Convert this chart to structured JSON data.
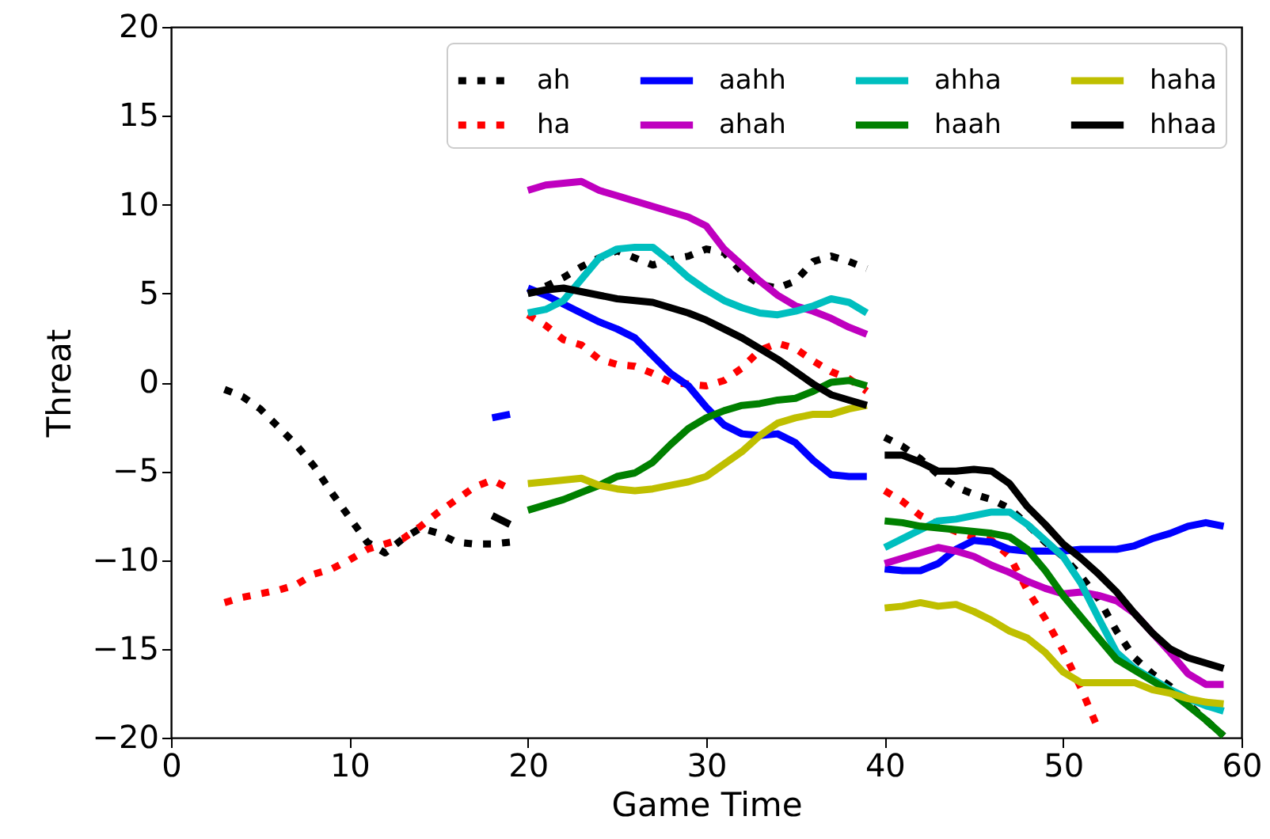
{
  "chart_data": {
    "type": "line",
    "xlabel": "Game Time",
    "ylabel": "Threat",
    "x": [
      3,
      4,
      5,
      6,
      7,
      8,
      9,
      10,
      11,
      12,
      13,
      14,
      15,
      16,
      17,
      18,
      19,
      19.5,
      20,
      21,
      22,
      23,
      24,
      25,
      26,
      27,
      28,
      29,
      30,
      31,
      32,
      33,
      34,
      35,
      36,
      37,
      38,
      39,
      39.5,
      40,
      41,
      42,
      43,
      44,
      45,
      46,
      47,
      48,
      49,
      50,
      51,
      52,
      53,
      54,
      55,
      56,
      57,
      58,
      59
    ],
    "xlim": [
      0,
      60
    ],
    "xticks": [
      0,
      10,
      20,
      30,
      40,
      50,
      60
    ],
    "ylim": [
      -20,
      20
    ],
    "yticks": [
      -20,
      -15,
      -10,
      -5,
      0,
      5,
      10,
      15,
      20
    ],
    "legend": "top right",
    "marker": "none",
    "grid": false,
    "series": [
      {
        "name": "ah",
        "color": "#000000",
        "line_style": "dotted",
        "values": [
          -0.4,
          -0.8,
          -1.5,
          -2.5,
          -3.5,
          -4.7,
          -6.2,
          -7.6,
          -9.0,
          -9.6,
          -8.8,
          -8.2,
          -8.5,
          -9.0,
          -9.1,
          -9.1,
          -9.0,
          null,
          5.0,
          5.4,
          5.9,
          6.5,
          7.0,
          7.4,
          7.0,
          6.6,
          6.9,
          7.1,
          7.5,
          7.3,
          6.2,
          5.5,
          5.3,
          5.7,
          6.8,
          7.1,
          6.8,
          6.4,
          null,
          -3.1,
          -3.6,
          -4.3,
          -5.2,
          -5.9,
          -6.3,
          -6.6,
          -7.1,
          -8.0,
          -9.0,
          -9.8,
          -10.9,
          -12.2,
          -14.0,
          -15.5,
          -16.4,
          -17.1,
          -18.1,
          -19.0,
          -19.9
        ]
      },
      {
        "name": "ha",
        "color": "#ff0000",
        "line_style": "dotted",
        "values": [
          -12.4,
          -12.1,
          -11.9,
          -11.7,
          -11.4,
          -10.8,
          -10.5,
          -10.0,
          -9.4,
          -9.1,
          -8.8,
          -8.1,
          -7.3,
          -6.6,
          -5.9,
          -5.5,
          -6.0,
          null,
          3.8,
          3.2,
          2.4,
          2.1,
          1.3,
          1.0,
          0.9,
          0.5,
          0.0,
          -0.1,
          -0.2,
          0.1,
          0.8,
          1.8,
          2.2,
          1.9,
          1.2,
          0.6,
          0.2,
          -0.5,
          null,
          -6.1,
          -6.7,
          -7.5,
          -8.0,
          -8.4,
          -8.7,
          -8.9,
          -9.8,
          -11.7,
          -13.3,
          -15.1,
          -17.2,
          -19.6,
          null,
          null,
          null,
          null,
          null,
          null,
          null
        ]
      },
      {
        "name": "aahh",
        "color": "#0000ff",
        "line_style": "solid",
        "values": [
          null,
          null,
          null,
          null,
          null,
          null,
          null,
          null,
          null,
          null,
          null,
          null,
          null,
          null,
          null,
          -2.0,
          -1.8,
          null,
          5.3,
          4.9,
          4.4,
          3.9,
          3.4,
          3.0,
          2.5,
          1.5,
          0.5,
          -0.2,
          -1.4,
          -2.4,
          -2.9,
          -3.0,
          -2.9,
          -3.4,
          -4.4,
          -5.2,
          -5.3,
          -5.3,
          null,
          -10.5,
          -10.6,
          -10.6,
          -10.2,
          -9.4,
          -8.9,
          -9.0,
          -9.4,
          -9.5,
          -9.5,
          -9.5,
          -9.4,
          -9.4,
          -9.4,
          -9.2,
          -8.8,
          -8.5,
          -8.1,
          -7.9,
          -8.1
        ]
      },
      {
        "name": "ahah",
        "color": "#bf00bf",
        "line_style": "solid",
        "values": [
          null,
          null,
          null,
          null,
          null,
          null,
          null,
          null,
          null,
          null,
          null,
          null,
          null,
          null,
          null,
          null,
          null,
          null,
          10.8,
          11.1,
          11.2,
          11.3,
          10.8,
          10.5,
          10.2,
          9.9,
          9.6,
          9.3,
          8.8,
          7.5,
          6.6,
          5.7,
          4.9,
          4.3,
          4.0,
          3.6,
          3.1,
          2.7,
          null,
          -10.2,
          -9.9,
          -9.6,
          -9.3,
          -9.5,
          -9.8,
          -10.3,
          -10.7,
          -11.2,
          -11.6,
          -11.9,
          -11.8,
          -12.0,
          -12.3,
          -13.0,
          -14.1,
          -15.2,
          -16.4,
          -17.0,
          -17.0
        ]
      },
      {
        "name": "ahha",
        "color": "#00bfbf",
        "line_style": "solid",
        "values": [
          null,
          null,
          null,
          null,
          null,
          null,
          null,
          null,
          null,
          null,
          null,
          null,
          null,
          null,
          null,
          null,
          null,
          null,
          3.9,
          4.1,
          4.6,
          5.8,
          7.0,
          7.5,
          7.6,
          7.6,
          6.8,
          5.9,
          5.2,
          4.6,
          4.2,
          3.9,
          3.8,
          4.0,
          4.3,
          4.7,
          4.5,
          3.9,
          null,
          -9.3,
          -8.8,
          -8.3,
          -7.8,
          -7.7,
          -7.5,
          -7.3,
          -7.3,
          -8.0,
          -8.9,
          -9.8,
          -11.3,
          -13.3,
          -15.2,
          -16.1,
          -16.7,
          -17.3,
          -17.8,
          -18.2,
          -18.5
        ]
      },
      {
        "name": "haah",
        "color": "#008000",
        "line_style": "solid",
        "values": [
          null,
          null,
          null,
          null,
          null,
          null,
          null,
          null,
          null,
          null,
          null,
          null,
          null,
          null,
          null,
          null,
          null,
          null,
          -7.2,
          -6.9,
          -6.6,
          -6.2,
          -5.8,
          -5.3,
          -5.1,
          -4.5,
          -3.5,
          -2.6,
          -2.0,
          -1.6,
          -1.3,
          -1.2,
          -1.0,
          -0.9,
          -0.5,
          0.0,
          0.1,
          -0.2,
          null,
          -7.8,
          -7.9,
          -8.1,
          -8.2,
          -8.3,
          -8.4,
          -8.5,
          -8.7,
          -9.4,
          -10.6,
          -12.0,
          -13.2,
          -14.4,
          -15.6,
          -16.2,
          -16.8,
          -17.4,
          -18.2,
          -19.0,
          -19.9
        ]
      },
      {
        "name": "haha",
        "color": "#bfbf00",
        "line_style": "solid",
        "values": [
          null,
          null,
          null,
          null,
          null,
          null,
          null,
          null,
          null,
          null,
          null,
          null,
          null,
          null,
          null,
          null,
          null,
          null,
          -5.7,
          -5.6,
          -5.5,
          -5.4,
          -5.8,
          -6.0,
          -6.1,
          -6.0,
          -5.8,
          -5.6,
          -5.3,
          -4.6,
          -3.9,
          -3.0,
          -2.3,
          -2.0,
          -1.8,
          -1.8,
          -1.5,
          -1.3,
          null,
          -12.7,
          -12.6,
          -12.4,
          -12.6,
          -12.5,
          -12.9,
          -13.4,
          -14.0,
          -14.4,
          -15.2,
          -16.3,
          -16.9,
          -16.9,
          -16.9,
          -16.9,
          -17.3,
          -17.5,
          -17.8,
          -18.0,
          -18.1
        ]
      },
      {
        "name": "hhaa",
        "color": "#000000",
        "line_style": "solid",
        "values": [
          null,
          null,
          null,
          null,
          null,
          null,
          null,
          null,
          null,
          null,
          null,
          null,
          null,
          null,
          null,
          -7.5,
          -8.0,
          null,
          5.0,
          5.2,
          5.3,
          5.1,
          4.9,
          4.7,
          4.6,
          4.5,
          4.2,
          3.9,
          3.5,
          3.0,
          2.5,
          1.9,
          1.3,
          0.6,
          -0.1,
          -0.7,
          -1.0,
          -1.3,
          null,
          -4.1,
          -4.1,
          -4.5,
          -5.0,
          -5.0,
          -4.9,
          -5.0,
          -5.7,
          -7.0,
          -8.0,
          -9.1,
          -9.9,
          -10.8,
          -11.8,
          -13.0,
          -14.1,
          -15.0,
          -15.5,
          -15.8,
          -16.1
        ]
      }
    ]
  }
}
